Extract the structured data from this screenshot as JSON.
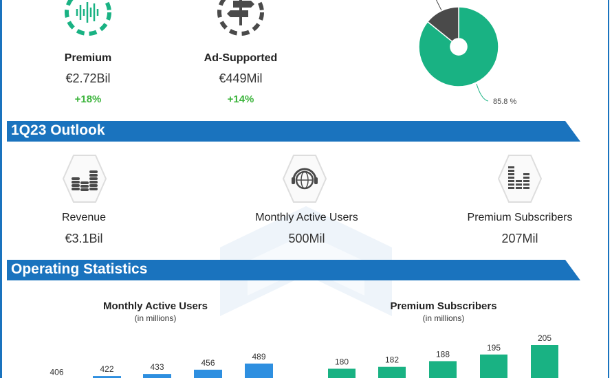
{
  "revenue_split": {
    "items": [
      {
        "label": "Premium",
        "value": "€2.72Bil",
        "growth": "+18%",
        "icon": "sound-wave-icon",
        "color": "#19b283"
      },
      {
        "label": "Ad-Supported",
        "value": "€449Mil",
        "growth": "+14%",
        "icon": "signpost-icon",
        "color": "#4a4a4a"
      }
    ]
  },
  "chart_data": [
    {
      "type": "pie",
      "slices": [
        {
          "value": 85.8,
          "color": "#19b283",
          "label": "85.8 %"
        },
        {
          "value": 14.2,
          "color": "#4a4a4a"
        }
      ]
    },
    {
      "type": "bar",
      "title": "Monthly Active Users",
      "subtitle": "(in millions)",
      "values": [
        406,
        422,
        433,
        456,
        489
      ],
      "color": "#2e8fe0"
    },
    {
      "type": "bar",
      "title": "Premium Subscribers",
      "subtitle": "(in millions)",
      "values": [
        180,
        182,
        188,
        195,
        205
      ],
      "color": "#19b283"
    }
  ],
  "outlook": {
    "title": "1Q23 Outlook",
    "items": [
      {
        "label": "Revenue",
        "value": "€3.1Bil",
        "icon": "coin-stacks-icon"
      },
      {
        "label": "Monthly Active Users",
        "value": "500Mil",
        "icon": "globe-headphones-icon"
      },
      {
        "label": "Premium Subscribers",
        "value": "207Mil",
        "icon": "equalizer-icon"
      }
    ]
  },
  "operating": {
    "title": "Operating Statistics"
  }
}
